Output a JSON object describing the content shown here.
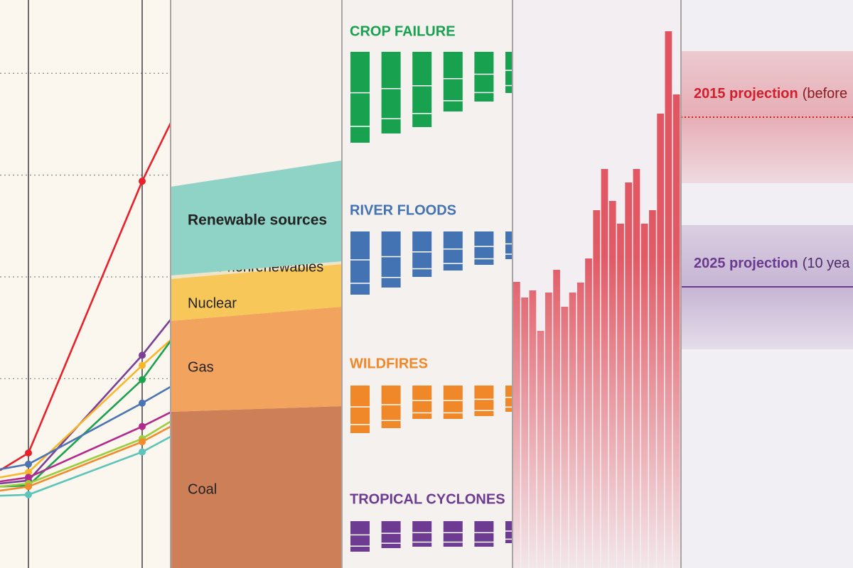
{
  "chart_data": [
    {
      "type": "line",
      "xlim": [
        -1,
        5
      ],
      "xticks": [
        0,
        4
      ],
      "ylim": [
        -0.86,
        4.72
      ],
      "yticks": [
        1,
        2,
        3,
        4
      ],
      "grid": true,
      "x": [
        -1,
        0,
        4,
        5
      ],
      "series": [
        {
          "color": "#e8212b",
          "values": [
            0.1,
            0.27,
            2.94,
            3.51
          ]
        },
        {
          "color": "#7b3f98",
          "values": [
            -0.03,
            0.0,
            1.23,
            1.58
          ]
        },
        {
          "color": "#f7b72b",
          "values": [
            0.03,
            0.08,
            1.13,
            1.38
          ]
        },
        {
          "color": "#1ba24f",
          "values": [
            -0.06,
            -0.05,
            0.99,
            1.37
          ]
        },
        {
          "color": "#4a74b4",
          "values": [
            0.11,
            0.16,
            0.76,
            0.92
          ]
        },
        {
          "color": "#b42a8c",
          "values": [
            -0.01,
            0.03,
            0.53,
            0.67
          ]
        },
        {
          "color": "#9ccd3b",
          "values": [
            -0.06,
            -0.03,
            0.41,
            0.58
          ]
        },
        {
          "color": "#f28a2e",
          "values": [
            -0.1,
            -0.06,
            0.38,
            0.53
          ]
        },
        {
          "color": "#5cc4b8",
          "values": [
            -0.15,
            -0.14,
            0.28,
            0.43
          ]
        }
      ]
    },
    {
      "type": "area",
      "stacked": true,
      "xlim": [
        0,
        1
      ],
      "x": [
        0,
        1
      ],
      "ylim": [
        0,
        800
      ],
      "series": [
        {
          "name": "Coal",
          "color": "#cd7f58",
          "values": [
            220,
            228
          ]
        },
        {
          "name": "Gas",
          "color": "#f2a35e",
          "values": [
            128,
            140
          ]
        },
        {
          "name": "Nuclear",
          "color": "#f7c75a",
          "values": [
            59,
            60
          ]
        },
        {
          "name": "Other nonrenewables",
          "color": "#efe3c8",
          "values": [
            5,
            4
          ]
        },
        {
          "name": "Renewable sources",
          "color": "#8fd3c6",
          "values": [
            125,
            142
          ]
        }
      ]
    },
    {
      "type": "bar",
      "title": "CROP FAILURE",
      "color": "#18a14f",
      "ylim": [
        0,
        130
      ],
      "categories": [
        null,
        null,
        null,
        null,
        null,
        null
      ],
      "values": [
        128,
        115,
        106,
        84,
        70,
        58
      ]
    },
    {
      "type": "bar",
      "title": "RIVER FLOODS",
      "color": "#4473b3",
      "ylim": [
        0,
        130
      ],
      "categories": [
        null,
        null,
        null,
        null,
        null,
        null
      ],
      "values": [
        89,
        79,
        64,
        55,
        47,
        39
      ]
    },
    {
      "type": "bar",
      "title": "WILDFIRES",
      "color": "#f0882a",
      "ylim": [
        0,
        130
      ],
      "categories": [
        null,
        null,
        null,
        null,
        null,
        null
      ],
      "values": [
        67,
        60,
        47,
        47,
        43,
        37
      ]
    },
    {
      "type": "bar",
      "title": "TROPICAL CYCLONES",
      "color": "#6e3b92",
      "ylim": [
        0,
        130
      ],
      "categories": [
        null,
        null,
        null,
        null,
        null,
        null
      ],
      "values": [
        43,
        38,
        36,
        36,
        36,
        31
      ]
    },
    {
      "type": "bar",
      "color": "#e0525e",
      "ylim": [
        0,
        800
      ],
      "categories": [
        null,
        null,
        null,
        null,
        null,
        null,
        null,
        null,
        null,
        null,
        null,
        null,
        null,
        null,
        null,
        null,
        null,
        null,
        null,
        null,
        null
      ],
      "values": [
        403,
        381,
        391,
        334,
        388,
        420,
        368,
        388,
        402,
        436,
        504,
        562,
        517,
        485,
        543,
        562,
        485,
        504,
        640,
        756,
        667
      ]
    },
    {
      "type": "band",
      "ylim": [
        0,
        800
      ],
      "series": [
        {
          "name": "2015 projection",
          "note": "(before",
          "color": "#d0202e",
          "line": "dotted",
          "values": [
            635
          ],
          "range": [
            542,
            728
          ]
        },
        {
          "name": "2025 projection",
          "note": "(10 yea",
          "color": "#6b3a8f",
          "line": "solid",
          "values": [
            396
          ],
          "range": [
            308,
            483
          ]
        }
      ]
    }
  ]
}
